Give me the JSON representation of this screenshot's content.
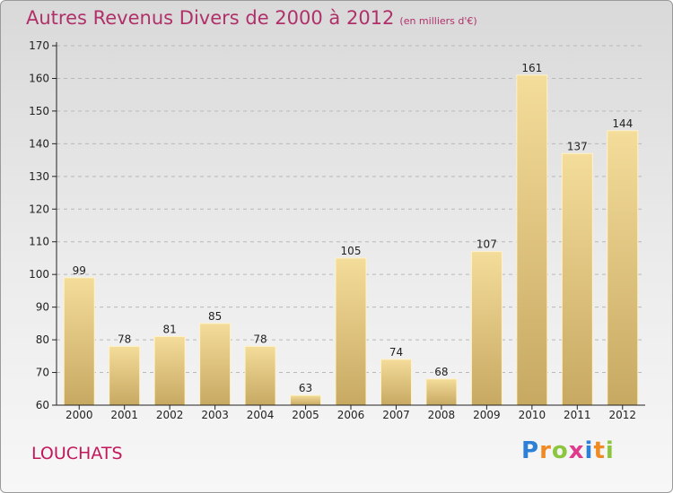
{
  "header": {
    "title": "Autres Revenus Divers de 2000 à 2012",
    "unit": "(en milliers d'€)"
  },
  "footer": {
    "commune": "LOUCHATS",
    "logo_text": "Proxiti",
    "logo_letters": [
      {
        "char": "P",
        "color": "#2e7fd6"
      },
      {
        "char": "r",
        "color": "#f08a24"
      },
      {
        "char": "o",
        "color": "#8cc63f"
      },
      {
        "char": "x",
        "color": "#e03a8c"
      },
      {
        "char": "i",
        "color": "#2e7fd6"
      },
      {
        "char": "t",
        "color": "#f08a24"
      },
      {
        "char": "i",
        "color": "#8cc63f"
      }
    ]
  },
  "colors": {
    "title": "#b0306a",
    "commune": "#c2185b",
    "bar_light": "#f4dc9a",
    "bar_dark": "#c7a962",
    "axis": "#222222",
    "grid": "#b8b8b8"
  },
  "chart_data": {
    "type": "bar",
    "categories": [
      "2000",
      "2001",
      "2002",
      "2003",
      "2004",
      "2005",
      "2006",
      "2007",
      "2008",
      "2009",
      "2010",
      "2011",
      "2012"
    ],
    "values": [
      99,
      78,
      81,
      85,
      78,
      63,
      105,
      74,
      68,
      107,
      161,
      137,
      144
    ],
    "title": "Autres Revenus Divers de 2000 à 2012",
    "xlabel": "",
    "ylabel": "",
    "ylim": [
      60,
      170
    ],
    "yticks": [
      60,
      70,
      80,
      90,
      100,
      110,
      120,
      130,
      140,
      150,
      160,
      170
    ],
    "grid": true,
    "data_labels": true
  }
}
